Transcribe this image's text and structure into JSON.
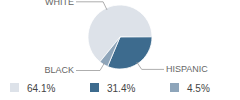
{
  "chart_data": {
    "type": "pie",
    "categories": [
      "WHITE",
      "HISPANIC",
      "BLACK"
    ],
    "values": [
      64.1,
      31.4,
      4.5
    ],
    "value_labels": [
      "64.1%",
      "31.4%",
      "4.5%"
    ],
    "colors": [
      "#dde2e9",
      "#3d6b8e",
      "#8ea5ba"
    ]
  }
}
